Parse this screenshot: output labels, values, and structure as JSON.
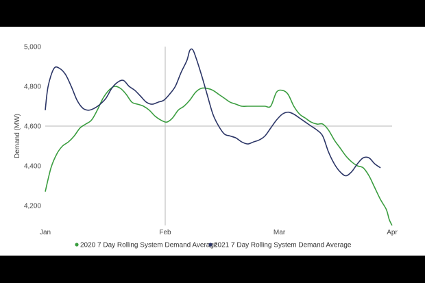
{
  "chart_data": {
    "type": "line",
    "title": "",
    "xlabel": "",
    "ylabel": "Demand (MW)",
    "ylim": [
      4100,
      5000
    ],
    "xlim": [
      "Jan",
      "Apr"
    ],
    "x_ticks": [
      "Jan",
      "Feb",
      "Mar",
      "Apr"
    ],
    "y_ticks": [
      "4,200",
      "4,400",
      "4,600",
      "4,800",
      "5,000"
    ],
    "y_tick_values": [
      4200,
      4400,
      4600,
      4800,
      5000
    ],
    "reference_lines": {
      "x": "Feb",
      "y": 4600
    },
    "grid": false,
    "legend_position": "bottom",
    "colors": {
      "2020": "#3a9d3f",
      "2021": "#2b3566"
    },
    "series": [
      {
        "name": "2020 7 Day Rolling System Demand Average",
        "color": "#3a9d3f",
        "points": [
          [
            0,
            4270
          ],
          [
            2,
            4390
          ],
          [
            4,
            4460
          ],
          [
            6,
            4500
          ],
          [
            8,
            4520
          ],
          [
            10,
            4550
          ],
          [
            12,
            4590
          ],
          [
            14,
            4610
          ],
          [
            16,
            4630
          ],
          [
            18,
            4680
          ],
          [
            20,
            4740
          ],
          [
            22,
            4780
          ],
          [
            24,
            4800
          ],
          [
            26,
            4790
          ],
          [
            28,
            4760
          ],
          [
            30,
            4720
          ],
          [
            32,
            4710
          ],
          [
            34,
            4700
          ],
          [
            36,
            4680
          ],
          [
            38,
            4650
          ],
          [
            40,
            4630
          ],
          [
            42,
            4620
          ],
          [
            44,
            4640
          ],
          [
            46,
            4680
          ],
          [
            48,
            4700
          ],
          [
            50,
            4730
          ],
          [
            52,
            4770
          ],
          [
            54,
            4790
          ],
          [
            56,
            4790
          ],
          [
            58,
            4780
          ],
          [
            60,
            4760
          ],
          [
            62,
            4740
          ],
          [
            64,
            4720
          ],
          [
            66,
            4710
          ],
          [
            68,
            4700
          ],
          [
            70,
            4700
          ],
          [
            72,
            4700
          ],
          [
            74,
            4700
          ],
          [
            76,
            4700
          ],
          [
            78,
            4700
          ],
          [
            80,
            4770
          ],
          [
            82,
            4780
          ],
          [
            84,
            4760
          ],
          [
            86,
            4700
          ],
          [
            88,
            4660
          ],
          [
            90,
            4640
          ],
          [
            92,
            4620
          ],
          [
            94,
            4610
          ],
          [
            96,
            4610
          ],
          [
            98,
            4580
          ],
          [
            100,
            4530
          ],
          [
            102,
            4490
          ],
          [
            104,
            4450
          ],
          [
            106,
            4420
          ],
          [
            108,
            4400
          ],
          [
            110,
            4390
          ],
          [
            112,
            4350
          ],
          [
            114,
            4290
          ],
          [
            116,
            4230
          ],
          [
            118,
            4180
          ],
          [
            119,
            4130
          ],
          [
            120,
            4100
          ]
        ]
      },
      {
        "name": "2021 7 Day Rolling System Demand Average",
        "color": "#2b3566",
        "points": [
          [
            0,
            4680
          ],
          [
            1,
            4800
          ],
          [
            3,
            4890
          ],
          [
            5,
            4890
          ],
          [
            7,
            4860
          ],
          [
            9,
            4800
          ],
          [
            11,
            4730
          ],
          [
            13,
            4690
          ],
          [
            15,
            4680
          ],
          [
            17,
            4690
          ],
          [
            19,
            4710
          ],
          [
            21,
            4740
          ],
          [
            23,
            4790
          ],
          [
            25,
            4820
          ],
          [
            27,
            4830
          ],
          [
            29,
            4800
          ],
          [
            31,
            4780
          ],
          [
            33,
            4750
          ],
          [
            35,
            4720
          ],
          [
            37,
            4710
          ],
          [
            39,
            4720
          ],
          [
            41,
            4730
          ],
          [
            43,
            4760
          ],
          [
            45,
            4800
          ],
          [
            47,
            4870
          ],
          [
            49,
            4930
          ],
          [
            50,
            4980
          ],
          [
            51,
            4985
          ],
          [
            52,
            4950
          ],
          [
            54,
            4860
          ],
          [
            56,
            4760
          ],
          [
            58,
            4660
          ],
          [
            60,
            4600
          ],
          [
            62,
            4560
          ],
          [
            64,
            4550
          ],
          [
            66,
            4540
          ],
          [
            68,
            4520
          ],
          [
            70,
            4510
          ],
          [
            72,
            4520
          ],
          [
            74,
            4530
          ],
          [
            76,
            4550
          ],
          [
            78,
            4590
          ],
          [
            80,
            4630
          ],
          [
            82,
            4660
          ],
          [
            84,
            4670
          ],
          [
            86,
            4660
          ],
          [
            88,
            4640
          ],
          [
            90,
            4620
          ],
          [
            92,
            4600
          ],
          [
            94,
            4580
          ],
          [
            96,
            4550
          ],
          [
            98,
            4470
          ],
          [
            100,
            4410
          ],
          [
            102,
            4370
          ],
          [
            104,
            4350
          ],
          [
            106,
            4370
          ],
          [
            108,
            4410
          ],
          [
            110,
            4440
          ],
          [
            112,
            4440
          ],
          [
            114,
            4410
          ],
          [
            116,
            4390
          ]
        ]
      }
    ]
  }
}
